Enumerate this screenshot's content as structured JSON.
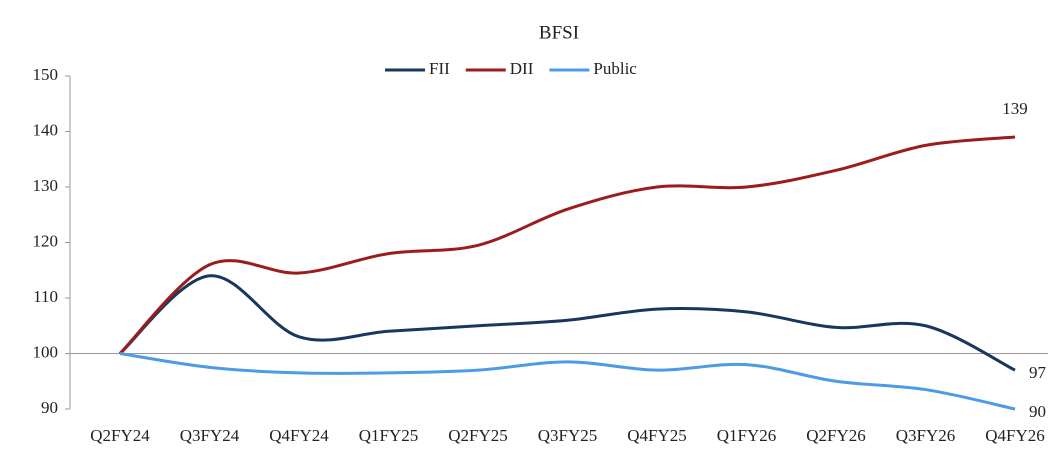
{
  "chart_data": {
    "type": "line",
    "title": "BFSI",
    "categories": [
      "Q2FY24",
      "Q3FY24",
      "Q4FY24",
      "Q1FY25",
      "Q2FY25",
      "Q3FY25",
      "Q4FY25",
      "Q1FY26",
      "Q2FY26",
      "Q3FY26",
      "Q4FY26"
    ],
    "series": [
      {
        "name": "FII",
        "color": "#17375e",
        "values": [
          100,
          114,
          103,
          104,
          105,
          106,
          108,
          107.5,
          104.7,
          105,
          97
        ]
      },
      {
        "name": "DII",
        "color": "#9b1c1c",
        "values": [
          100,
          116,
          114.5,
          118,
          119.5,
          126,
          130,
          130,
          133,
          137.5,
          139
        ]
      },
      {
        "name": "Public",
        "color": "#4d9be6",
        "values": [
          100,
          97.5,
          96.5,
          96.5,
          97,
          98.5,
          97,
          98,
          95,
          93.5,
          90
        ]
      }
    ],
    "ylim": [
      90,
      150
    ],
    "yticks": [
      90,
      100,
      110,
      120,
      130,
      140,
      150
    ],
    "legend": "top",
    "smooth": true
  }
}
